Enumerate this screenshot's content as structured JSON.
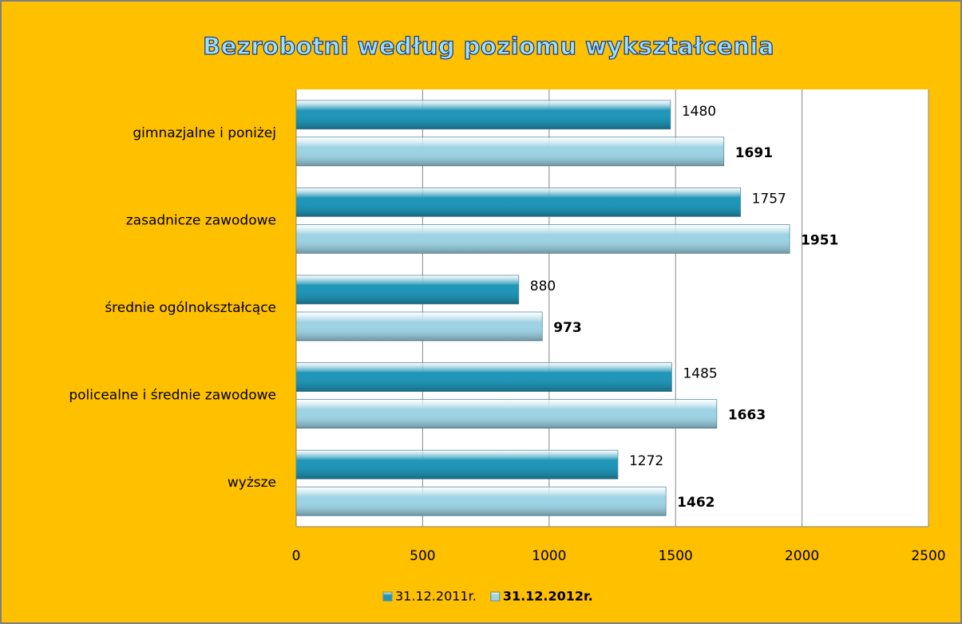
{
  "chart_data": {
    "type": "bar",
    "orientation": "horizontal",
    "title": "Bezrobotni według poziomu wykształcenia",
    "categories": [
      "gimnazjalne i poniżej",
      "zasadnicze zawodowe",
      "średnie ogólnokształcące",
      "policealne i średnie zawodowe",
      "wyższe"
    ],
    "series": [
      {
        "name": "31.12.2011r.",
        "color": "#2196b8",
        "values": [
          1480,
          1757,
          880,
          1485,
          1272
        ]
      },
      {
        "name": "31.12.2012r.",
        "color": "#9ed3e4",
        "values": [
          1691,
          1951,
          973,
          1663,
          1462
        ]
      }
    ],
    "xlim": [
      0,
      2500
    ],
    "xticks": [
      0,
      500,
      1000,
      1500,
      2000,
      2500
    ],
    "grid": true,
    "legend": "bottom"
  }
}
